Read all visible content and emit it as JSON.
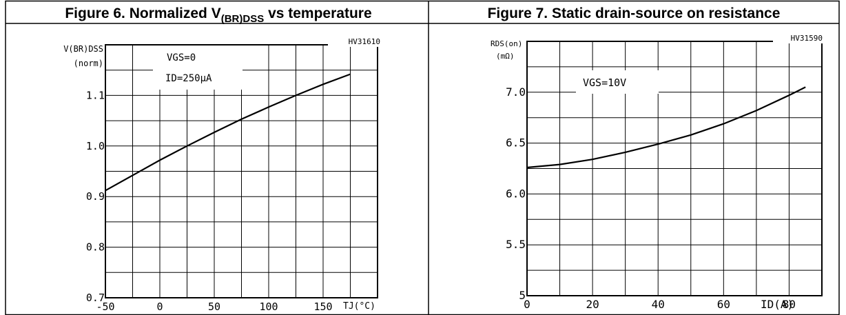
{
  "figures": [
    {
      "title": "Figure 6. Normalized V",
      "title_sub": "(BR)DSS",
      "title_tail": " vs temperature",
      "code": "HV31610",
      "ylabel_1": "V(BR)DSS",
      "ylabel_2": "(norm)",
      "annotation_1": "VGS=0",
      "annotation_2": "ID=250µA",
      "xlabel": "TJ(°C)"
    },
    {
      "title": "Figure 7. Static drain-source on resistance",
      "code": "HV31590",
      "ylabel_1": "RDS(on)",
      "ylabel_2": "(mΩ)",
      "annotation_1": "VGS=10V",
      "xlabel": "ID(A)"
    }
  ],
  "chart_data": [
    {
      "type": "line",
      "title": "Figure 6. Normalized V(BR)DSS vs temperature",
      "xlabel": "TJ(°C)",
      "ylabel": "V(BR)DSS (norm)",
      "xlim": [
        -50,
        200
      ],
      "ylim": [
        0.7,
        1.2
      ],
      "x_ticks": [
        "-50",
        "0",
        "50",
        "100",
        "150"
      ],
      "y_ticks": [
        "0.7",
        "0.8",
        "0.9",
        "1.0",
        "1.1"
      ],
      "grid": true,
      "series": [
        {
          "x": [
            -50,
            -25,
            0,
            25,
            50,
            75,
            100,
            125,
            150,
            175
          ],
          "y": [
            0.912,
            0.942,
            0.972,
            1.0,
            1.027,
            1.053,
            1.077,
            1.1,
            1.122,
            1.142
          ]
        }
      ]
    },
    {
      "type": "line",
      "title": "Figure 7. Static drain-source on resistance",
      "xlabel": "ID(A)",
      "ylabel": "RDS(on) (mΩ)",
      "xlim": [
        0,
        90
      ],
      "ylim": [
        5,
        7.5
      ],
      "x_ticks": [
        "0",
        "20",
        "40",
        "60",
        "80"
      ],
      "y_ticks": [
        "5",
        "5.5",
        "6.0",
        "6.5",
        "7.0"
      ],
      "grid": true,
      "series": [
        {
          "x": [
            0,
            10,
            20,
            30,
            40,
            50,
            60,
            70,
            80,
            85
          ],
          "y": [
            6.26,
            6.29,
            6.34,
            6.41,
            6.49,
            6.58,
            6.69,
            6.82,
            6.97,
            7.05
          ]
        }
      ]
    }
  ]
}
